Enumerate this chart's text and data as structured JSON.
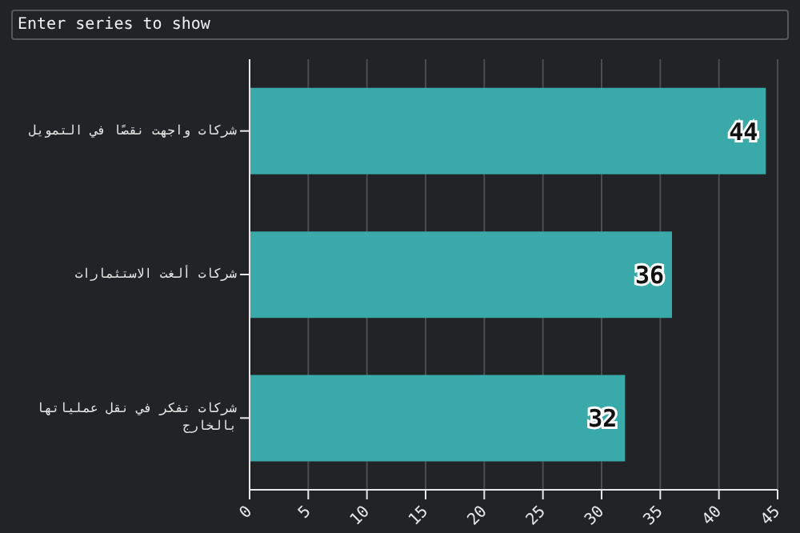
{
  "chart_data": {
    "type": "bar",
    "orientation": "horizontal",
    "annotations": [
      "Enter series to show"
    ],
    "categories": [
      "شركات واجهت نقصًا في التمويل",
      "شركات ألغت الاستثمارات",
      "شركات تفكر في نقل عملياتها بالخارج"
    ],
    "values": [
      44,
      36,
      32
    ],
    "color": "#3aa9a9",
    "data_labels": true,
    "xlim": [
      0,
      45
    ],
    "xticks": [
      0,
      5,
      10,
      15,
      20,
      25,
      30,
      35,
      40,
      45
    ],
    "grid": "x",
    "legend": false
  }
}
